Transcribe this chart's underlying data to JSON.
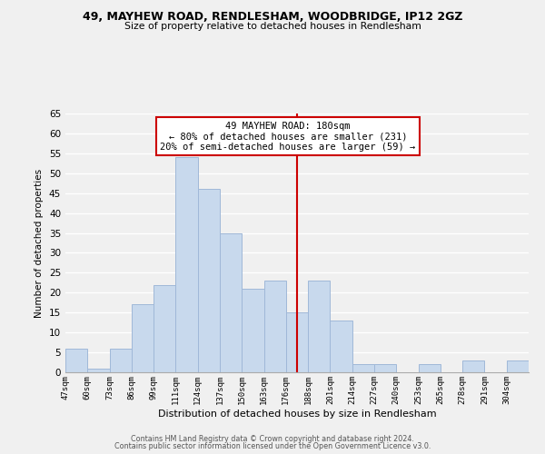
{
  "title1": "49, MAYHEW ROAD, RENDLESHAM, WOODBRIDGE, IP12 2GZ",
  "title2": "Size of property relative to detached houses in Rendlesham",
  "xlabel": "Distribution of detached houses by size in Rendlesham",
  "ylabel": "Number of detached properties",
  "bin_labels": [
    "47sqm",
    "60sqm",
    "73sqm",
    "86sqm",
    "99sqm",
    "111sqm",
    "124sqm",
    "137sqm",
    "150sqm",
    "163sqm",
    "176sqm",
    "188sqm",
    "201sqm",
    "214sqm",
    "227sqm",
    "240sqm",
    "253sqm",
    "265sqm",
    "278sqm",
    "291sqm",
    "304sqm"
  ],
  "bar_heights": [
    6,
    1,
    6,
    17,
    22,
    54,
    46,
    35,
    21,
    23,
    15,
    23,
    13,
    2,
    2,
    0,
    2,
    0,
    3,
    0,
    3
  ],
  "bar_color": "#c8d9ed",
  "bar_edge_color": "#a0b8d8",
  "vline_x": 10.5,
  "vline_color": "#cc0000",
  "annotation_title": "49 MAYHEW ROAD: 180sqm",
  "annotation_line1": "← 80% of detached houses are smaller (231)",
  "annotation_line2": "20% of semi-detached houses are larger (59) →",
  "annotation_box_color": "#ffffff",
  "annotation_box_edge": "#cc0000",
  "ylim": [
    0,
    65
  ],
  "yticks": [
    0,
    5,
    10,
    15,
    20,
    25,
    30,
    35,
    40,
    45,
    50,
    55,
    60,
    65
  ],
  "footer1": "Contains HM Land Registry data © Crown copyright and database right 2024.",
  "footer2": "Contains public sector information licensed under the Open Government Licence v3.0.",
  "bg_color": "#f0f0f0",
  "grid_color": "#ffffff"
}
